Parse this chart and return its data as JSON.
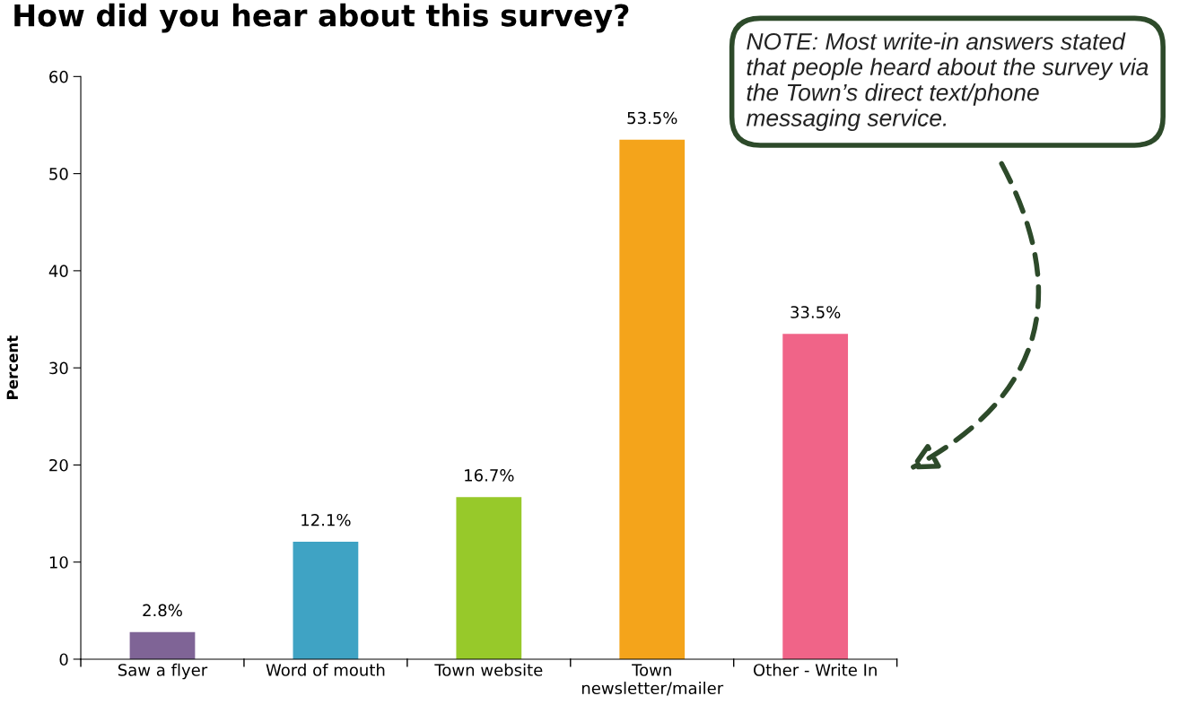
{
  "chart_data": {
    "type": "bar",
    "title": "How did you hear about this survey?",
    "ylabel": "Percent",
    "categories": [
      "Saw a flyer",
      "Word of mouth",
      "Town website",
      "Town\nnewsletter/mailer",
      "Other - Write In"
    ],
    "values": [
      2.8,
      12.1,
      16.7,
      53.5,
      33.5
    ],
    "colors": [
      "#7f6496",
      "#3fa3c4",
      "#97c92a",
      "#f4a41b",
      "#f06488"
    ],
    "value_labels": [
      "2.8%",
      "12.1%",
      "16.7%",
      "53.5%",
      "33.5%"
    ],
    "ylim": [
      0,
      60
    ],
    "yticks": [
      0,
      10,
      20,
      30,
      40,
      50,
      60
    ],
    "grid": false,
    "annotations": [
      "NOTE: Most write-in answers stated that people heard about the survey via the Town’s direct text/phone messaging service."
    ]
  }
}
